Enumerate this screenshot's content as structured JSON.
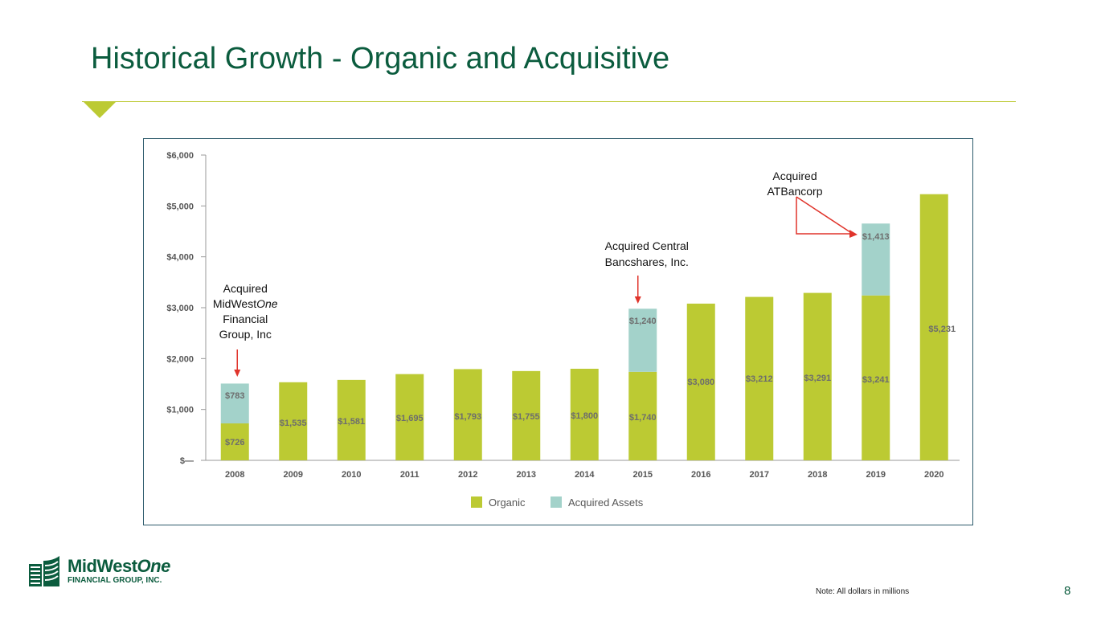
{
  "title": "Historical Growth - Organic and Acquisitive",
  "colors": {
    "organic": "#bcca33",
    "acquired": "#a3d2ca",
    "brand": "#0b5c3e",
    "arrow": "#e0342b"
  },
  "chart_data": {
    "type": "bar",
    "stacked": true,
    "categories": [
      "2008",
      "2009",
      "2010",
      "2011",
      "2012",
      "2013",
      "2014",
      "2015",
      "2016",
      "2017",
      "2018",
      "2019",
      "2020"
    ],
    "series": [
      {
        "name": "Organic",
        "color": "#bcca33",
        "values": [
          726,
          1535,
          1581,
          1695,
          1793,
          1755,
          1800,
          1740,
          3080,
          3212,
          3291,
          3241,
          5231
        ]
      },
      {
        "name": "Acquired Assets",
        "color": "#a3d2ca",
        "values": [
          783,
          0,
          0,
          0,
          0,
          0,
          0,
          1240,
          0,
          0,
          0,
          1413,
          0
        ]
      }
    ],
    "organic_labels": [
      "$726",
      "$1,535",
      "$1,581",
      "$1,695",
      "$1,793",
      "$1,755",
      "$1,800",
      "$1,740",
      "$3,080",
      "$3,212",
      "$3,291",
      "$3,241",
      "$5,231"
    ],
    "acquired_labels": [
      "$783",
      "",
      "",
      "",
      "",
      "",
      "",
      "$1,240",
      "",
      "",
      "",
      "$1,413",
      ""
    ],
    "ylim": [
      0,
      6000
    ],
    "yticks": [
      0,
      1000,
      2000,
      3000,
      4000,
      5000,
      6000
    ],
    "ytick_labels": [
      "$—",
      "$1,000",
      "$2,000",
      "$3,000",
      "$4,000",
      "$5,000",
      "$6,000"
    ],
    "legend": {
      "placement": "bottom",
      "entries": [
        "Organic",
        "Acquired Assets"
      ]
    },
    "grid": false,
    "annotations": [
      {
        "category": "2008",
        "lines": [
          "Acquired",
          "MidWestOne",
          "Financial",
          "Group, Inc"
        ]
      },
      {
        "category": "2015",
        "lines": [
          "Acquired Central",
          "Bancshares, Inc."
        ]
      },
      {
        "category": "2019",
        "lines": [
          "Acquired",
          "ATBancorp"
        ]
      }
    ]
  },
  "logo": {
    "name_main": "MidWest",
    "name_italic": "One",
    "subtitle": "FINANCIAL GROUP, INC."
  },
  "note": "Note: All dollars in millions",
  "page_number": "8"
}
